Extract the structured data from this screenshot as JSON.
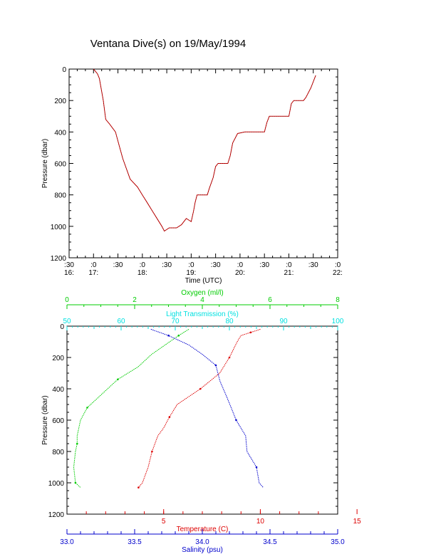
{
  "title": "Ventana Dive(s) on 19/May/1994",
  "colors": {
    "axis": "#000000",
    "oxygen": "#00cc00",
    "transmission": "#00e0e0",
    "temperature": "#dd0000",
    "salinity": "#0000cc",
    "trace": "#cc0000"
  },
  "chart_data": [
    {
      "type": "line",
      "title": "",
      "xlabel": "Time (UTC)",
      "ylabel": "Pressure (dbar)",
      "ylim": [
        1200,
        0
      ],
      "y_ticks": [
        "0",
        "200",
        "400",
        "600",
        "800",
        "1000",
        "1200"
      ],
      "x_ticks": [
        {
          "top": ":30",
          "bottom": "16:"
        },
        {
          "top": ":0",
          "bottom": "17:"
        },
        {
          "top": ":30",
          "bottom": ""
        },
        {
          "top": ":0",
          "bottom": "18:"
        },
        {
          "top": ":30",
          "bottom": ""
        },
        {
          "top": ":0",
          "bottom": "19:"
        },
        {
          "top": ":30",
          "bottom": ""
        },
        {
          "top": ":0",
          "bottom": "20:"
        },
        {
          "top": ":30",
          "bottom": ""
        },
        {
          "top": ":0",
          "bottom": "21:"
        },
        {
          "top": ":30",
          "bottom": ""
        },
        {
          "top": ":0",
          "bottom": "22:"
        }
      ],
      "xlim_hours": [
        16.5,
        22.0
      ],
      "series": [
        {
          "x_hours": [
            17.0,
            17.08,
            17.12,
            17.2,
            17.25,
            17.33,
            17.45,
            17.52,
            17.6,
            17.75,
            17.9,
            18.0,
            18.1,
            18.2,
            18.3,
            18.4,
            18.45,
            18.55,
            18.62,
            18.7,
            18.8,
            18.9,
            18.95,
            19.0,
            19.05,
            19.08,
            19.12,
            19.2,
            19.33,
            19.37,
            19.45,
            19.5,
            19.55,
            19.62,
            19.75,
            19.8,
            19.85,
            19.95,
            20.1,
            20.15,
            20.25,
            20.5,
            20.55,
            20.6,
            20.9,
            21.0,
            21.05,
            21.1,
            21.3,
            21.35,
            21.45,
            21.55
          ],
          "y_dbar": [
            0,
            30,
            60,
            200,
            320,
            350,
            400,
            480,
            570,
            700,
            750,
            800,
            850,
            900,
            950,
            1000,
            1030,
            1010,
            1010,
            1010,
            990,
            950,
            960,
            970,
            900,
            850,
            800,
            800,
            800,
            760,
            690,
            620,
            600,
            600,
            600,
            550,
            470,
            410,
            400,
            400,
            400,
            400,
            340,
            300,
            300,
            300,
            220,
            200,
            200,
            180,
            120,
            40
          ]
        }
      ]
    },
    {
      "type": "line",
      "title": "",
      "ylabel": "Pressure (dbar)",
      "ylim": [
        1200,
        0
      ],
      "y_ticks": [
        "0",
        "200",
        "400",
        "600",
        "800",
        "1000",
        "1200"
      ],
      "axes": {
        "oxygen": {
          "label": "Oxygen (ml/l)",
          "ticks": [
            "0",
            "2",
            "4",
            "6",
            "8"
          ],
          "range": [
            0,
            8
          ]
        },
        "transmission": {
          "label": "Light Transmission (%)",
          "ticks": [
            "50",
            "60",
            "70",
            "80",
            "90",
            "100"
          ],
          "range": [
            50,
            100
          ]
        },
        "temperature": {
          "label": "Temperature (C)",
          "ticks": [
            "5",
            "10",
            "15"
          ],
          "range": [
            0,
            14
          ]
        },
        "salinity": {
          "label": "Salinity (psu)",
          "ticks": [
            "33.0",
            "33.5",
            "34.0",
            "34.5",
            "35.0"
          ],
          "range": [
            33.0,
            35.0
          ]
        }
      },
      "series": [
        {
          "key": "oxygen",
          "x": [
            3.6,
            3.3,
            2.5,
            2.1,
            1.5,
            1.2,
            0.9,
            0.6,
            0.4,
            0.3,
            0.3,
            0.25,
            0.2,
            0.25,
            0.4
          ],
          "y_dbar": [
            20,
            60,
            180,
            260,
            340,
            400,
            460,
            520,
            600,
            700,
            750,
            800,
            900,
            1000,
            1030
          ]
        },
        {
          "key": "temperature",
          "x": [
            10.0,
            9.5,
            9.0,
            8.8,
            8.4,
            7.9,
            7.4,
            6.9,
            6.3,
            5.7,
            5.3,
            5.0,
            4.7,
            4.4,
            4.2,
            3.9,
            3.7
          ],
          "y_dbar": [
            20,
            40,
            60,
            100,
            200,
            300,
            350,
            400,
            450,
            500,
            580,
            650,
            700,
            800,
            900,
            1000,
            1030
          ]
        },
        {
          "key": "salinity",
          "x": [
            33.62,
            33.75,
            33.9,
            34.0,
            34.1,
            34.13,
            34.18,
            34.25,
            34.32,
            34.33,
            34.4,
            34.42,
            34.45
          ],
          "y_dbar": [
            20,
            60,
            120,
            180,
            250,
            350,
            450,
            600,
            700,
            800,
            900,
            1000,
            1030
          ]
        }
      ]
    }
  ]
}
